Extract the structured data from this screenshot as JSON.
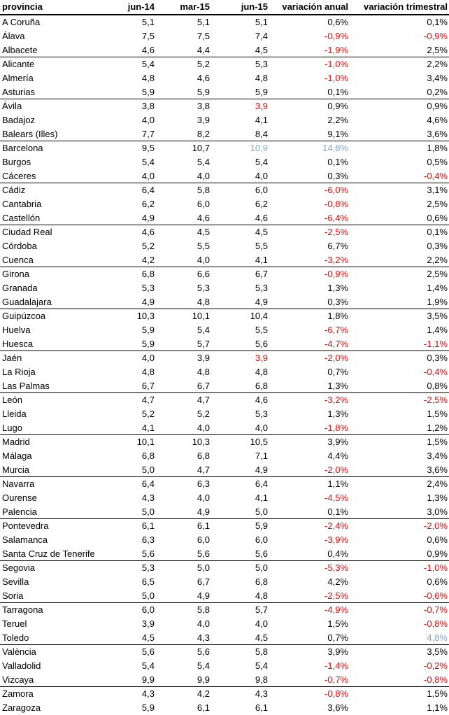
{
  "chart_data": {
    "type": "table",
    "title": "",
    "columns": [
      "provincia",
      "jun-14",
      "mar-15",
      "jun-15",
      "variación anual",
      "variación trimestral"
    ],
    "rows": [
      [
        "A Coruña",
        "5,1",
        "5,1",
        "5,1",
        "0,6%",
        "0,1%"
      ],
      [
        "Álava",
        "7,5",
        "7,5",
        "7,4",
        "-0,9%",
        "-0,9%"
      ],
      [
        "Albacete",
        "4,6",
        "4,4",
        "4,5",
        "-1,9%",
        "2,5%"
      ],
      [
        "Alicante",
        "5,4",
        "5,2",
        "5,3",
        "-1,0%",
        "2,2%"
      ],
      [
        "Almería",
        "4,8",
        "4,6",
        "4,8",
        "-1,0%",
        "3,4%"
      ],
      [
        "Asturias",
        "5,9",
        "5,9",
        "5,9",
        "0,1%",
        "0,2%"
      ],
      [
        "Ávila",
        "3,8",
        "3,8",
        "3,9",
        "0,9%",
        "0,9%"
      ],
      [
        "Badajoz",
        "4,0",
        "3,9",
        "4,1",
        "2,2%",
        "4,6%"
      ],
      [
        "Balears (Illes)",
        "7,7",
        "8,2",
        "8,4",
        "9,1%",
        "3,6%"
      ],
      [
        "Barcelona",
        "9,5",
        "10,7",
        "10,9",
        "14,8%",
        "1,8%"
      ],
      [
        "Burgos",
        "5,4",
        "5,4",
        "5,4",
        "0,1%",
        "0,5%"
      ],
      [
        "Cáceres",
        "4,0",
        "4,0",
        "4,0",
        "0,3%",
        "-0,4%"
      ],
      [
        "Cádiz",
        "6,4",
        "5,8",
        "6,0",
        "-6,0%",
        "3,1%"
      ],
      [
        "Cantabria",
        "6,2",
        "6,0",
        "6,2",
        "-0,8%",
        "2,5%"
      ],
      [
        "Castellón",
        "4,9",
        "4,6",
        "4,6",
        "-6,4%",
        "0,6%"
      ],
      [
        "Ciudad Real",
        "4,6",
        "4,5",
        "4,5",
        "-2,5%",
        "0,1%"
      ],
      [
        "Córdoba",
        "5,2",
        "5,5",
        "5,5",
        "6,7%",
        "0,3%"
      ],
      [
        "Cuenca",
        "4,2",
        "4,0",
        "4,1",
        "-3,2%",
        "2,2%"
      ],
      [
        "Girona",
        "6,8",
        "6,6",
        "6,7",
        "-0,9%",
        "2,5%"
      ],
      [
        "Granada",
        "5,3",
        "5,3",
        "5,3",
        "1,3%",
        "1,4%"
      ],
      [
        "Guadalajara",
        "4,9",
        "4,8",
        "4,9",
        "0,3%",
        "1,9%"
      ],
      [
        "Guipúzcoa",
        "10,3",
        "10,1",
        "10,4",
        "1,8%",
        "3,5%"
      ],
      [
        "Huelva",
        "5,9",
        "5,4",
        "5,5",
        "-6,7%",
        "1,4%"
      ],
      [
        "Huesca",
        "5,9",
        "5,7",
        "5,6",
        "-4,7%",
        "-1,1%"
      ],
      [
        "Jaén",
        "4,0",
        "3,9",
        "3,9",
        "-2,0%",
        "0,3%"
      ],
      [
        "La Rioja",
        "4,8",
        "4,8",
        "4,8",
        "0,7%",
        "-0,4%"
      ],
      [
        "Las Palmas",
        "6,7",
        "6,7",
        "6,8",
        "1,3%",
        "0,8%"
      ],
      [
        "León",
        "4,7",
        "4,7",
        "4,6",
        "-3,2%",
        "-2,5%"
      ],
      [
        "Lleida",
        "5,2",
        "5,2",
        "5,3",
        "1,3%",
        "1,5%"
      ],
      [
        "Lugo",
        "4,1",
        "4,0",
        "4,0",
        "-1,8%",
        "1,2%"
      ],
      [
        "Madrid",
        "10,1",
        "10,3",
        "10,5",
        "3,9%",
        "1,5%"
      ],
      [
        "Málaga",
        "6,8",
        "6,8",
        "7,1",
        "4,4%",
        "3,4%"
      ],
      [
        "Murcia",
        "5,0",
        "4,7",
        "4,9",
        "-2,0%",
        "3,6%"
      ],
      [
        "Navarra",
        "6,4",
        "6,3",
        "6,4",
        "1,1%",
        "2,4%"
      ],
      [
        "Ourense",
        "4,3",
        "4,0",
        "4,1",
        "-4,5%",
        "1,3%"
      ],
      [
        "Palencia",
        "5,0",
        "4,9",
        "5,0",
        "0,1%",
        "3,0%"
      ],
      [
        "Pontevedra",
        "6,1",
        "6,1",
        "5,9",
        "-2,4%",
        "-2,0%"
      ],
      [
        "Salamanca",
        "6,3",
        "6,0",
        "6,0",
        "-3,9%",
        "0,6%"
      ],
      [
        "Santa Cruz de Tenerife",
        "5,6",
        "5,6",
        "5,6",
        "0,4%",
        "0,9%"
      ],
      [
        "Segovia",
        "5,3",
        "5,0",
        "5,0",
        "-5,3%",
        "-1,0%"
      ],
      [
        "Sevilla",
        "6,5",
        "6,7",
        "6,8",
        "4,2%",
        "0,6%"
      ],
      [
        "Soria",
        "5,0",
        "4,9",
        "4,8",
        "-2,5%",
        "-0,6%"
      ],
      [
        "Tarragona",
        "6,0",
        "5,8",
        "5,7",
        "-4,9%",
        "-0,7%"
      ],
      [
        "Teruel",
        "3,9",
        "4,0",
        "4,0",
        "1,5%",
        "-0,8%"
      ],
      [
        "Toledo",
        "4,5",
        "4,3",
        "4,5",
        "0,7%",
        "4,8%"
      ],
      [
        "València",
        "5,6",
        "5,6",
        "5,8",
        "3,9%",
        "3,5%"
      ],
      [
        "Valladolid",
        "5,4",
        "5,4",
        "5,4",
        "-1,4%",
        "-0,2%"
      ],
      [
        "Vizcaya",
        "9,9",
        "9,9",
        "9,8",
        "-0,7%",
        "-0,8%"
      ],
      [
        "Zamora",
        "4,3",
        "4,2",
        "4,3",
        "-0,8%",
        "1,5%"
      ],
      [
        "Zaragoza",
        "5,9",
        "6,1",
        "6,1",
        "3,6%",
        "1,1%"
      ]
    ],
    "cell_colors": [
      [
        "k",
        "k",
        "k"
      ],
      [
        "k",
        "r",
        "r"
      ],
      [
        "k",
        "r",
        "k"
      ],
      [
        "k",
        "r",
        "k"
      ],
      [
        "k",
        "r",
        "k"
      ],
      [
        "k",
        "k",
        "k"
      ],
      [
        "r",
        "k",
        "k"
      ],
      [
        "k",
        "k",
        "k"
      ],
      [
        "k",
        "k",
        "k"
      ],
      [
        "b",
        "b",
        "k"
      ],
      [
        "k",
        "k",
        "k"
      ],
      [
        "k",
        "k",
        "r"
      ],
      [
        "k",
        "r",
        "k"
      ],
      [
        "k",
        "r",
        "k"
      ],
      [
        "k",
        "r",
        "k"
      ],
      [
        "k",
        "r",
        "k"
      ],
      [
        "k",
        "k",
        "k"
      ],
      [
        "k",
        "r",
        "k"
      ],
      [
        "k",
        "r",
        "k"
      ],
      [
        "k",
        "k",
        "k"
      ],
      [
        "k",
        "k",
        "k"
      ],
      [
        "k",
        "k",
        "k"
      ],
      [
        "k",
        "r",
        "k"
      ],
      [
        "k",
        "r",
        "r"
      ],
      [
        "r",
        "r",
        "k"
      ],
      [
        "k",
        "k",
        "r"
      ],
      [
        "k",
        "k",
        "k"
      ],
      [
        "k",
        "r",
        "r"
      ],
      [
        "k",
        "k",
        "k"
      ],
      [
        "k",
        "r",
        "k"
      ],
      [
        "k",
        "k",
        "k"
      ],
      [
        "k",
        "k",
        "k"
      ],
      [
        "k",
        "r",
        "k"
      ],
      [
        "k",
        "k",
        "k"
      ],
      [
        "k",
        "r",
        "k"
      ],
      [
        "k",
        "k",
        "k"
      ],
      [
        "k",
        "r",
        "r"
      ],
      [
        "k",
        "r",
        "k"
      ],
      [
        "k",
        "k",
        "k"
      ],
      [
        "k",
        "r",
        "r"
      ],
      [
        "k",
        "k",
        "k"
      ],
      [
        "k",
        "r",
        "r"
      ],
      [
        "k",
        "r",
        "r"
      ],
      [
        "k",
        "k",
        "r"
      ],
      [
        "k",
        "k",
        "b"
      ],
      [
        "k",
        "k",
        "k"
      ],
      [
        "k",
        "r",
        "r"
      ],
      [
        "k",
        "r",
        "r"
      ],
      [
        "k",
        "r",
        "k"
      ],
      [
        "k",
        "k",
        "k"
      ]
    ],
    "legend_position": "none",
    "grid": "horizontal-group-lines-every-3-rows"
  },
  "colors": {
    "text": "#000000",
    "negative_red": "#FF0000",
    "highlight_blue": "#7DA5DC",
    "border": "#000000",
    "background": "#FFFFFF"
  }
}
